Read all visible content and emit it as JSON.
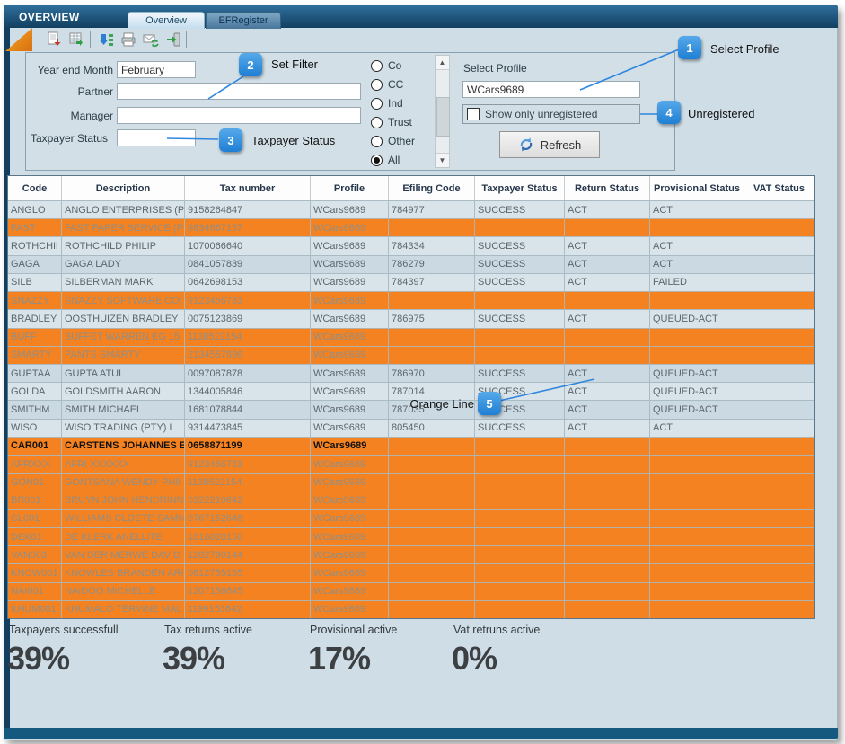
{
  "window": {
    "title": "OVERVIEW",
    "tabs": [
      {
        "label": "Overview",
        "active": true
      },
      {
        "label": "EFRegister",
        "active": false
      }
    ]
  },
  "toolbar": {
    "icons": [
      "report-export-icon",
      "grid-export-icon",
      "download-list-icon",
      "printer-icon",
      "mail-sync-icon",
      "exit-icon"
    ]
  },
  "filter": {
    "year_end_month": {
      "label": "Year end Month",
      "value": "February"
    },
    "partner": {
      "label": "Partner",
      "value": ""
    },
    "manager": {
      "label": "Manager",
      "value": ""
    },
    "taxpayer_status": {
      "label": "Taxpayer Status",
      "value": ""
    },
    "entity_types": {
      "options": [
        "Co",
        "CC",
        "Ind",
        "Trust",
        "Other",
        "All"
      ],
      "selected": "All"
    },
    "profile": {
      "label": "Select Profile",
      "value": "WCars9689"
    },
    "show_only_unregistered": {
      "label": "Show only unregistered",
      "checked": false
    },
    "refresh_label": "Refresh"
  },
  "callouts": [
    {
      "number": "1",
      "label": "Select Profile"
    },
    {
      "number": "2",
      "label": "Set Filter"
    },
    {
      "number": "3",
      "label": "Taxpayer Status"
    },
    {
      "number": "4",
      "label": "Unregistered"
    },
    {
      "number": "5",
      "label": "Orange Line"
    }
  ],
  "table": {
    "columns": [
      "Code",
      "Description",
      "Tax number",
      "Profile",
      "Efiling Code",
      "Taxpayer Status",
      "Return Status",
      "Provisional Status",
      "VAT Status"
    ],
    "rows": [
      {
        "code": "ANGLO",
        "description": "ANGLO ENTERPRISES (P",
        "tax_number": "9158264847",
        "profile": "WCars9689",
        "efiling_code": "784977",
        "taxpayer_status": "SUCCESS",
        "return_status": "ACT",
        "provisional_status": "ACT",
        "vat_status": "",
        "highlight": "none",
        "selected": false
      },
      {
        "code": "FAST",
        "description": "FAST PAPER SERVICE (P",
        "tax_number": "9834667157",
        "profile": "WCars9689",
        "efiling_code": "",
        "taxpayer_status": "",
        "return_status": "",
        "provisional_status": "",
        "vat_status": "",
        "highlight": "orange",
        "selected": false
      },
      {
        "code": "ROTHCHIl",
        "description": "ROTHCHILD PHILIP",
        "tax_number": "1070066640",
        "profile": "WCars9689",
        "efiling_code": "784334",
        "taxpayer_status": "SUCCESS",
        "return_status": "ACT",
        "provisional_status": "ACT",
        "vat_status": "",
        "highlight": "none",
        "selected": false
      },
      {
        "code": "GAGA",
        "description": "GAGA LADY",
        "tax_number": "0841057839",
        "profile": "WCars9689",
        "efiling_code": "786279",
        "taxpayer_status": "SUCCESS",
        "return_status": "ACT",
        "provisional_status": "ACT",
        "vat_status": "",
        "highlight": "none",
        "selected": false
      },
      {
        "code": "SILB",
        "description": "SILBERMAN MARK",
        "tax_number": "0642698153",
        "profile": "WCars9689",
        "efiling_code": "784397",
        "taxpayer_status": "SUCCESS",
        "return_status": "ACT",
        "provisional_status": "FAILED",
        "vat_status": "",
        "highlight": "none",
        "selected": false
      },
      {
        "code": "SNAZZY",
        "description": "SNAZZY SOFTWARE COl",
        "tax_number": "9123456783",
        "profile": "WCars9689",
        "efiling_code": "",
        "taxpayer_status": "",
        "return_status": "",
        "provisional_status": "",
        "vat_status": "",
        "highlight": "orange",
        "selected": false
      },
      {
        "code": "BRADLEY",
        "description": "OOSTHUIZEN BRADLEY",
        "tax_number": "0075123869",
        "profile": "WCars9689",
        "efiling_code": "786975",
        "taxpayer_status": "SUCCESS",
        "return_status": "ACT",
        "provisional_status": "QUEUED-ACT",
        "vat_status": "",
        "highlight": "none",
        "selected": false
      },
      {
        "code": "BUFF",
        "description": "BUFFET WARREN EG 15",
        "tax_number": "1138522154",
        "profile": "WCars9689",
        "efiling_code": "",
        "taxpayer_status": "",
        "return_status": "",
        "provisional_status": "",
        "vat_status": "",
        "highlight": "orange",
        "selected": false
      },
      {
        "code": "SMARTY",
        "description": "PANTS SMARTY",
        "tax_number": "2134567896",
        "profile": "WCars9689",
        "efiling_code": "",
        "taxpayer_status": "",
        "return_status": "",
        "provisional_status": "",
        "vat_status": "",
        "highlight": "orange",
        "selected": false
      },
      {
        "code": "GUPTAA",
        "description": "GUPTA ATUL",
        "tax_number": "0097087878",
        "profile": "WCars9689",
        "efiling_code": "786970",
        "taxpayer_status": "SUCCESS",
        "return_status": "ACT",
        "provisional_status": "QUEUED-ACT",
        "vat_status": "",
        "highlight": "none",
        "selected": false
      },
      {
        "code": "GOLDA",
        "description": "GOLDSMITH AARON",
        "tax_number": "1344005846",
        "profile": "WCars9689",
        "efiling_code": "787014",
        "taxpayer_status": "SUCCESS",
        "return_status": "ACT",
        "provisional_status": "QUEUED-ACT",
        "vat_status": "",
        "highlight": "none",
        "selected": false
      },
      {
        "code": "SMITHM",
        "description": "SMITH MICHAEL",
        "tax_number": "1681078844",
        "profile": "WCars9689",
        "efiling_code": "787035",
        "taxpayer_status": "SUCCESS",
        "return_status": "ACT",
        "provisional_status": "QUEUED-ACT",
        "vat_status": "",
        "highlight": "none",
        "selected": false
      },
      {
        "code": "WISO",
        "description": "WISO TRADING (PTY) L",
        "tax_number": "9314473845",
        "profile": "WCars9689",
        "efiling_code": "805450",
        "taxpayer_status": "SUCCESS",
        "return_status": "ACT",
        "provisional_status": "ACT",
        "vat_status": "",
        "highlight": "none",
        "selected": false
      },
      {
        "code": "CAR001",
        "description": "CARSTENS JOHANNES E(",
        "tax_number": "0658871199",
        "profile": "WCars9689",
        "efiling_code": "",
        "taxpayer_status": "",
        "return_status": "",
        "provisional_status": "",
        "vat_status": "",
        "highlight": "orange",
        "selected": true
      },
      {
        "code": "AFRXXX",
        "description": "AFRI XXXXXX",
        "tax_number": "9123456783",
        "profile": "WCars9689",
        "efiling_code": "",
        "taxpayer_status": "",
        "return_status": "",
        "provisional_status": "",
        "vat_status": "",
        "highlight": "orange",
        "selected": false
      },
      {
        "code": "GON01",
        "description": "GONTSANA WENDY PHIl",
        "tax_number": "1138522154",
        "profile": "WCars9689",
        "efiling_code": "",
        "taxpayer_status": "",
        "return_status": "",
        "provisional_status": "",
        "vat_status": "",
        "highlight": "orange",
        "selected": false
      },
      {
        "code": "BR001",
        "description": "BRUYN JOHN HENDRINN.",
        "tax_number": "0322210642",
        "profile": "WCars9689",
        "efiling_code": "",
        "taxpayer_status": "",
        "return_status": "",
        "provisional_status": "",
        "vat_status": "",
        "highlight": "orange",
        "selected": false
      },
      {
        "code": "CL001",
        "description": "WILLIAMS CLOETE SAMN",
        "tax_number": "0767152648",
        "profile": "WCars9689",
        "efiling_code": "",
        "taxpayer_status": "",
        "return_status": "",
        "provisional_status": "",
        "vat_status": "",
        "highlight": "orange",
        "selected": false
      },
      {
        "code": "DEK01",
        "description": "DE KLERK ANELLITE",
        "tax_number": "1016020156",
        "profile": "WCars9689",
        "efiling_code": "",
        "taxpayer_status": "",
        "return_status": "",
        "provisional_status": "",
        "vat_status": "",
        "highlight": "orange",
        "selected": false
      },
      {
        "code": "VAN003",
        "description": "VAN DER MERWE DAVID",
        "tax_number": "1282790144",
        "profile": "WCars9689",
        "efiling_code": "",
        "taxpayer_status": "",
        "return_status": "",
        "provisional_status": "",
        "vat_status": "",
        "highlight": "orange",
        "selected": false
      },
      {
        "code": "KNOW001",
        "description": "KNOWLES BRANDEN ARl",
        "tax_number": "0812755155",
        "profile": "WCars9689",
        "efiling_code": "",
        "taxpayer_status": "",
        "return_status": "",
        "provisional_status": "",
        "vat_status": "",
        "highlight": "orange",
        "selected": false
      },
      {
        "code": "NAI001",
        "description": "NAIDOO MICHELLE",
        "tax_number": "1207156645",
        "profile": "WCars9689",
        "efiling_code": "",
        "taxpayer_status": "",
        "return_status": "",
        "provisional_status": "",
        "vat_status": "",
        "highlight": "orange",
        "selected": false
      },
      {
        "code": "KHUM001",
        "description": "KHUMALO TERVINE MAL",
        "tax_number": "1199153642",
        "profile": "WCars9689",
        "efiling_code": "",
        "taxpayer_status": "",
        "return_status": "",
        "provisional_status": "",
        "vat_status": "",
        "highlight": "orange",
        "selected": false
      }
    ]
  },
  "stats": [
    {
      "label": "Taxpayers successfull",
      "value": "39%"
    },
    {
      "label": "Tax returns active",
      "value": "39%"
    },
    {
      "label": "Provisional active",
      "value": "17%"
    },
    {
      "label": "Vat retruns active",
      "value": "0%"
    }
  ],
  "colors": {
    "orange": "#f58220",
    "callout-blue": "#1f7fd4",
    "navy": "#123f60",
    "content-bg": "#cfdde6"
  }
}
